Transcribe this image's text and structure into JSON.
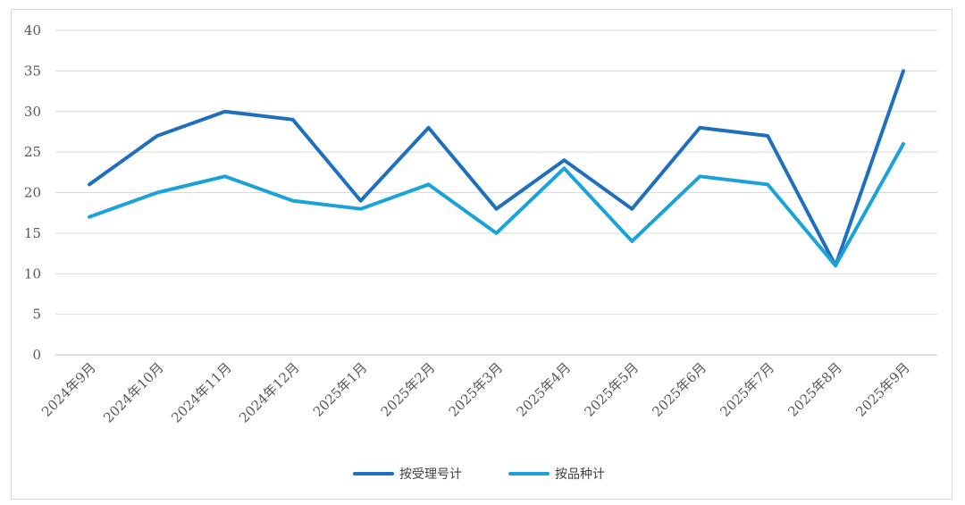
{
  "chart_data": {
    "type": "line",
    "title": "",
    "xlabel": "",
    "ylabel": "",
    "ylim": [
      0,
      40
    ],
    "yticks": [
      0,
      5,
      10,
      15,
      20,
      25,
      30,
      35,
      40
    ],
    "grid": true,
    "legend_position": "bottom",
    "categories": [
      "2024年9月",
      "2024年10月",
      "2024年11月",
      "2024年12月",
      "2025年1月",
      "2025年2月",
      "2025年3月",
      "2025年4月",
      "2025年5月",
      "2025年6月",
      "2025年7月",
      "2025年8月",
      "2025年9月"
    ],
    "series": [
      {
        "name": "按受理号计",
        "color": "#1f6fbf",
        "values": [
          21,
          27,
          30,
          29,
          19,
          28,
          18,
          24,
          18,
          28,
          27,
          11,
          35
        ]
      },
      {
        "name": "按品种计",
        "color": "#1aa3d9",
        "values": [
          17,
          20,
          22,
          19,
          18,
          21,
          15,
          23,
          14,
          22,
          21,
          11,
          26
        ]
      }
    ]
  }
}
